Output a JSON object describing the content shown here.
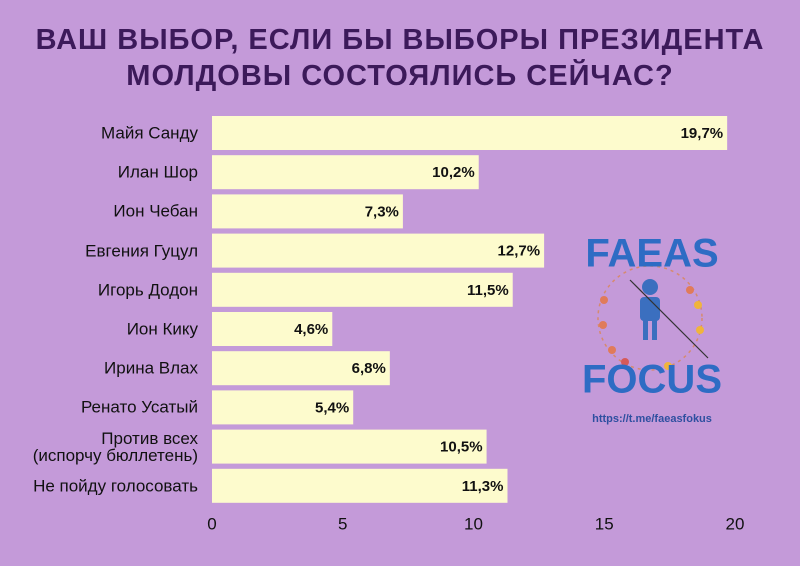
{
  "chart_data": {
    "type": "bar",
    "orientation": "horizontal",
    "title": "ВАШ ВЫБОР, ЕСЛИ БЫ ВЫБОРЫ ПРЕЗИДЕНТА\nМОЛДОВЫ СОСТОЯЛИСЬ СЕЙЧАС?",
    "categories": [
      "Майя Санду",
      "Илан Шор",
      "Ион Чебан",
      "Евгения Гуцул",
      "Игорь Додон",
      "Ион Кику",
      "Ирина Влах",
      "Ренато Усатый",
      "Против всех\n(испорчу бюллетень)",
      "Не пойду голосовать"
    ],
    "values": [
      19.7,
      10.2,
      7.3,
      12.7,
      11.5,
      4.6,
      6.8,
      5.4,
      10.5,
      11.3
    ],
    "value_labels": [
      "19,7%",
      "10,2%",
      "7,3%",
      "12,7%",
      "11,5%",
      "4,6%",
      "6,8%",
      "5,4%",
      "10,5%",
      "11,3%"
    ],
    "color": "#fdfbcd",
    "xlim": [
      0,
      20
    ],
    "xticks": [
      0,
      5,
      10,
      15,
      20
    ],
    "grid": false
  },
  "logo": {
    "top": "FAEAS",
    "bottom": "FOCUS",
    "url": "https://t.me/faeasfokus"
  }
}
